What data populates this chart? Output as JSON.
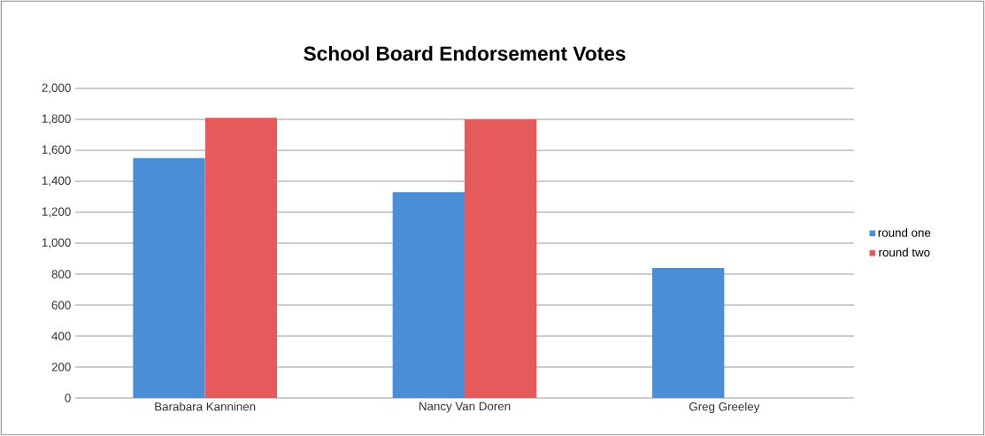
{
  "chart_data": {
    "type": "bar",
    "title": "School Board Endorsement Votes",
    "categories": [
      "Barabara Kanninen",
      "Nancy Van Doren",
      "Greg Greeley"
    ],
    "series": [
      {
        "name": "round one",
        "color": "#4a8fd6",
        "values": [
          1550,
          1330,
          840
        ]
      },
      {
        "name": "round two",
        "color": "#e55a5a",
        "values": [
          1810,
          1800,
          null
        ]
      }
    ],
    "ylim": [
      0,
      2000
    ],
    "yticks": [
      {
        "value": 0,
        "label": "0"
      },
      {
        "value": 200,
        "label": "200"
      },
      {
        "value": 400,
        "label": "400"
      },
      {
        "value": 600,
        "label": "600"
      },
      {
        "value": 800,
        "label": "800"
      },
      {
        "value": 1000,
        "label": "1,000"
      },
      {
        "value": 1200,
        "label": "1,200"
      },
      {
        "value": 1400,
        "label": "1,400"
      },
      {
        "value": 1600,
        "label": "1,600"
      },
      {
        "value": 1800,
        "label": "1,800"
      },
      {
        "value": 2000,
        "label": "2,000"
      }
    ],
    "grid": "y",
    "legend": "right"
  }
}
